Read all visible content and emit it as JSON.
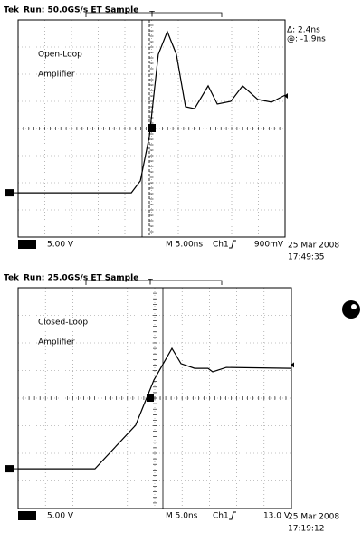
{
  "chart_data": [
    {
      "type": "line",
      "brand": "Tek",
      "status": "Run: 50.0GS/s ET Sample",
      "annotations": [
        "Open-Loop",
        "Amplifier"
      ],
      "cursor_readout": [
        "Δ: 2.4ns",
        "@: -1.9ns"
      ],
      "channel": "Ch1",
      "volts_per_div": "5.00 V",
      "time_per_div": "M 5.00ns",
      "trigger_source": "Ch1",
      "trigger_level": "900mV",
      "date": "25 Mar 2008",
      "time": "17:49:35",
      "xlim": [
        0,
        10
      ],
      "ylim": [
        0,
        8
      ],
      "color": "#000000",
      "x": [
        0,
        4.24,
        4.58,
        4.92,
        5.25,
        5.59,
        5.93,
        6.27,
        6.61,
        7.12,
        7.46,
        7.97,
        8.41,
        8.98,
        9.49,
        10
      ],
      "values": [
        1.63,
        1.63,
        2.07,
        3.73,
        6.73,
        7.57,
        6.73,
        4.8,
        4.73,
        5.57,
        4.9,
        5.0,
        5.57,
        5.07,
        4.97,
        5.23
      ]
    },
    {
      "type": "line",
      "brand": "Tek",
      "status": "Run: 25.0GS/s ET Sample",
      "annotations": [
        "Closed-Loop",
        "Amplifier"
      ],
      "channel": "Ch1",
      "volts_per_div": "5.00 V",
      "time_per_div": "M 5.0ns",
      "trigger_source": "Ch1",
      "trigger_level": "13.0 V",
      "date": "25 Mar 2008",
      "time": "17:19:12",
      "xlim": [
        0,
        10
      ],
      "ylim": [
        0,
        8
      ],
      "color": "#000000",
      "x": [
        0,
        2.81,
        4.3,
        4.97,
        5.63,
        5.96,
        6.46,
        6.95,
        7.12,
        7.62,
        10
      ],
      "values": [
        1.44,
        1.44,
        3.02,
        4.66,
        5.8,
        5.25,
        5.08,
        5.08,
        4.95,
        5.11,
        5.08
      ]
    }
  ]
}
